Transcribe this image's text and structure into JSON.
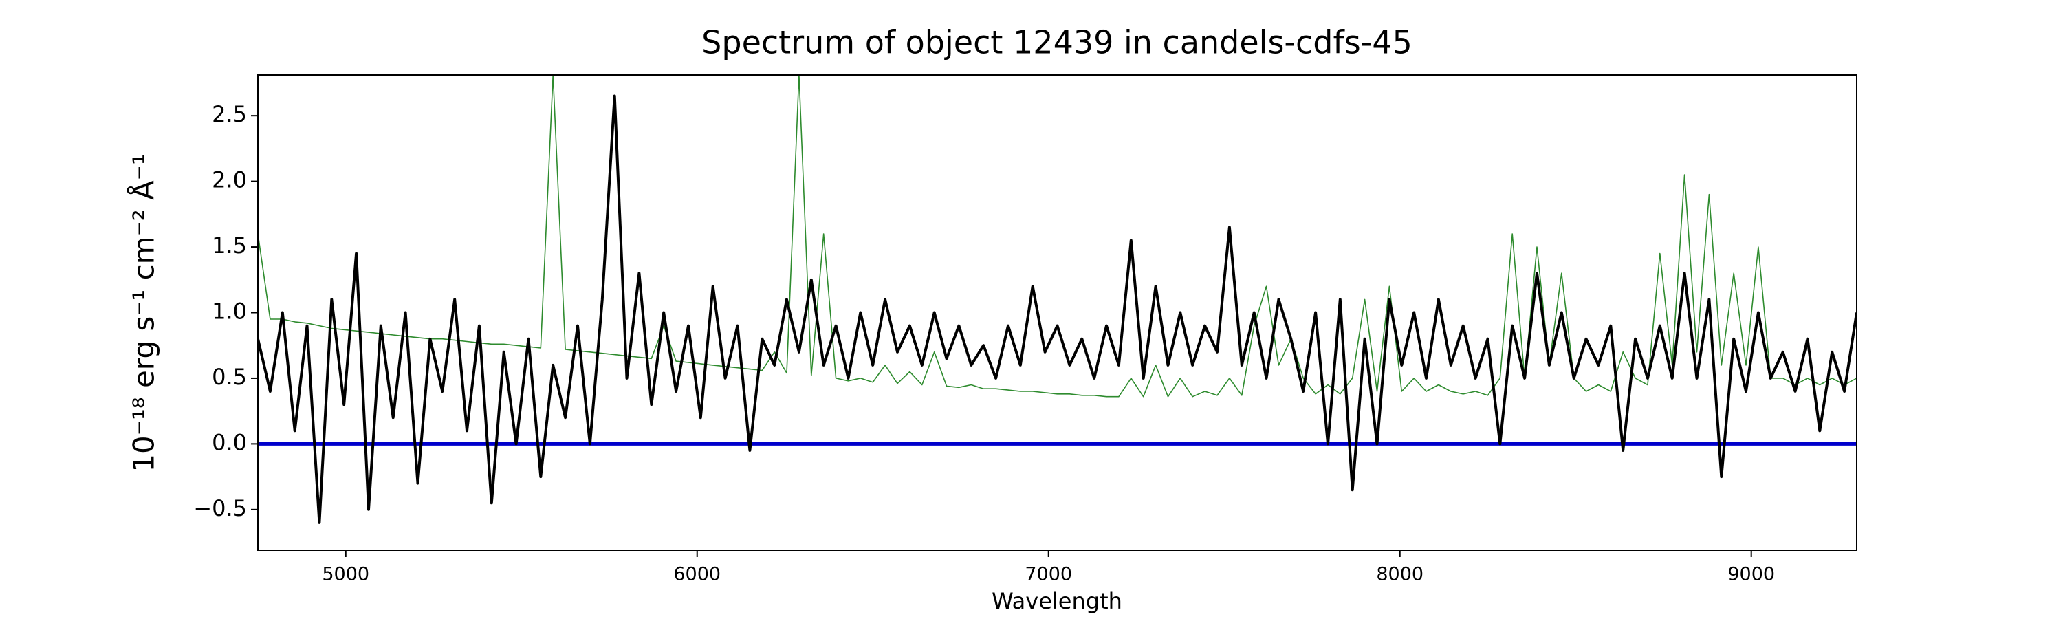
{
  "chart_data": {
    "type": "line",
    "title": "Spectrum of object 12439 in candels-cdfs-45",
    "xlabel": "Wavelength",
    "ylabel": "10⁻¹⁸ erg s⁻¹ cm⁻² Å⁻¹",
    "xlim": [
      4750,
      9300
    ],
    "ylim": [
      -0.81,
      2.81
    ],
    "xticks": [
      5000,
      6000,
      7000,
      8000,
      9000
    ],
    "yticks": [
      {
        "value": -0.5,
        "label": "−0.5"
      },
      {
        "value": 0,
        "label": "0.0"
      },
      {
        "value": 0.5,
        "label": "0.5"
      },
      {
        "value": 1,
        "label": "1.0"
      },
      {
        "value": 1.5,
        "label": "1.5"
      },
      {
        "value": 2,
        "label": "2.0"
      },
      {
        "value": 2.5,
        "label": "2.5"
      }
    ],
    "grid": false,
    "hlines": [
      {
        "y": 0,
        "color": "#0000cc"
      }
    ],
    "x": [
      4750,
      4785,
      4820,
      4855,
      4890,
      4925,
      4960,
      4995,
      5030,
      5065,
      5100,
      5135,
      5170,
      5205,
      5240,
      5275,
      5310,
      5345,
      5380,
      5415,
      5450,
      5485,
      5520,
      5555,
      5590,
      5625,
      5660,
      5695,
      5730,
      5765,
      5800,
      5835,
      5870,
      5905,
      5940,
      5975,
      6010,
      6045,
      6080,
      6115,
      6150,
      6185,
      6220,
      6255,
      6290,
      6325,
      6360,
      6395,
      6430,
      6465,
      6500,
      6535,
      6570,
      6605,
      6640,
      6675,
      6710,
      6745,
      6780,
      6815,
      6850,
      6885,
      6920,
      6955,
      6990,
      7025,
      7060,
      7095,
      7130,
      7165,
      7200,
      7235,
      7270,
      7305,
      7340,
      7375,
      7410,
      7445,
      7480,
      7515,
      7550,
      7585,
      7620,
      7655,
      7690,
      7725,
      7760,
      7795,
      7830,
      7865,
      7900,
      7935,
      7970,
      8005,
      8040,
      8075,
      8110,
      8145,
      8180,
      8215,
      8250,
      8285,
      8320,
      8355,
      8390,
      8425,
      8460,
      8495,
      8530,
      8565,
      8600,
      8635,
      8670,
      8705,
      8740,
      8775,
      8810,
      8845,
      8880,
      8915,
      8950,
      8985,
      9020,
      9055,
      9090,
      9125,
      9160,
      9195,
      9230,
      9265,
      9300
    ],
    "series": [
      {
        "color": "#2e8b2e",
        "width": 1.6,
        "values": [
          1.6,
          0.95,
          0.95,
          0.93,
          0.92,
          0.9,
          0.88,
          0.87,
          0.86,
          0.85,
          0.84,
          0.83,
          0.82,
          0.81,
          0.8,
          0.8,
          0.79,
          0.78,
          0.77,
          0.76,
          0.76,
          0.75,
          0.74,
          0.73,
          2.81,
          0.72,
          0.71,
          0.7,
          0.69,
          0.68,
          0.67,
          0.66,
          0.65,
          0.9,
          0.63,
          0.62,
          0.61,
          0.6,
          0.59,
          0.58,
          0.57,
          0.56,
          0.7,
          0.54,
          2.81,
          0.52,
          1.6,
          0.5,
          0.48,
          0.5,
          0.47,
          0.6,
          0.46,
          0.55,
          0.45,
          0.7,
          0.44,
          0.43,
          0.45,
          0.42,
          0.42,
          0.41,
          0.4,
          0.4,
          0.39,
          0.38,
          0.38,
          0.37,
          0.37,
          0.36,
          0.36,
          0.5,
          0.36,
          0.6,
          0.36,
          0.5,
          0.36,
          0.4,
          0.37,
          0.5,
          0.37,
          0.9,
          1.2,
          0.6,
          0.8,
          0.5,
          0.38,
          0.45,
          0.38,
          0.5,
          1.1,
          0.4,
          1.2,
          0.4,
          0.5,
          0.4,
          0.45,
          0.4,
          0.38,
          0.4,
          0.37,
          0.5,
          1.6,
          0.5,
          1.5,
          0.6,
          1.3,
          0.5,
          0.4,
          0.45,
          0.4,
          0.7,
          0.5,
          0.45,
          1.45,
          0.6,
          2.05,
          0.7,
          1.9,
          0.6,
          1.3,
          0.6,
          1.5,
          0.5,
          0.5,
          0.45,
          0.5,
          0.45,
          0.5,
          0.45,
          0.5
        ]
      },
      {
        "color": "#000000",
        "width": 4,
        "values": [
          0.8,
          0.4,
          1.0,
          0.1,
          0.9,
          -0.6,
          1.1,
          0.3,
          1.45,
          -0.5,
          0.9,
          0.2,
          1.0,
          -0.3,
          0.8,
          0.4,
          1.1,
          0.1,
          0.9,
          -0.45,
          0.7,
          0.0,
          0.8,
          -0.25,
          0.6,
          0.2,
          0.9,
          0.0,
          1.1,
          2.65,
          0.5,
          1.3,
          0.3,
          1.0,
          0.4,
          0.9,
          0.2,
          1.2,
          0.5,
          0.9,
          -0.05,
          0.8,
          0.6,
          1.1,
          0.7,
          1.25,
          0.6,
          0.9,
          0.5,
          1.0,
          0.6,
          1.1,
          0.7,
          0.9,
          0.6,
          1.0,
          0.65,
          0.9,
          0.6,
          0.75,
          0.5,
          0.9,
          0.6,
          1.2,
          0.7,
          0.9,
          0.6,
          0.8,
          0.5,
          0.9,
          0.6,
          1.55,
          0.5,
          1.2,
          0.6,
          1.0,
          0.6,
          0.9,
          0.7,
          1.65,
          0.6,
          1.0,
          0.5,
          1.1,
          0.8,
          0.4,
          1.0,
          0.0,
          1.1,
          -0.35,
          0.8,
          0.0,
          1.1,
          0.6,
          1.0,
          0.5,
          1.1,
          0.6,
          0.9,
          0.5,
          0.8,
          0.0,
          0.9,
          0.5,
          1.3,
          0.6,
          1.0,
          0.5,
          0.8,
          0.6,
          0.9,
          -0.05,
          0.8,
          0.5,
          0.9,
          0.5,
          1.3,
          0.5,
          1.1,
          -0.25,
          0.8,
          0.4,
          1.0,
          0.5,
          0.7,
          0.4,
          0.8,
          0.1,
          0.7,
          0.4,
          1.0
        ]
      }
    ]
  }
}
